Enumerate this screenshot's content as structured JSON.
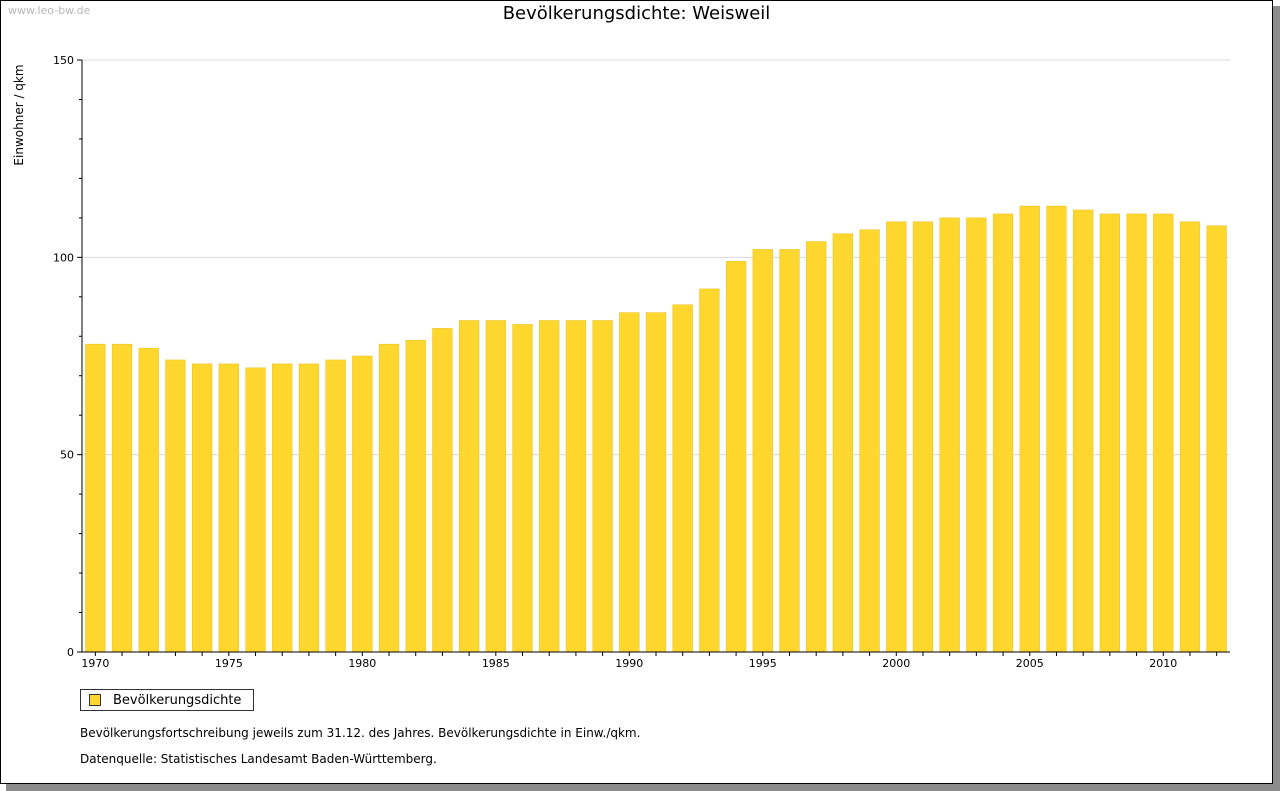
{
  "watermark": "www.leo-bw.de",
  "legend_label": "Bevölkerungsdichte",
  "footnotes": [
    "Bevölkerungsfortschreibung jeweils zum 31.12. des Jahres. Bevölkerungsdichte in Einw./qkm.",
    "Datenquelle: Statistisches Landesamt Baden-Württemberg."
  ],
  "colors": {
    "bar": "#fdd62e",
    "bar_edge": "#e8c020",
    "grid": "#d8d8d8",
    "axis": "#000000"
  },
  "chart_data": {
    "type": "bar",
    "title": "Bevölkerungsdichte: Weisweil",
    "xlabel": "",
    "ylabel": "Einwohner / qkm",
    "ylim": [
      0,
      150
    ],
    "yticks": [
      0,
      50,
      100,
      150
    ],
    "xtick_labels": [
      "1970",
      "1975",
      "1980",
      "1985",
      "1990",
      "1995",
      "2000",
      "2005",
      "2010"
    ],
    "categories": [
      1970,
      1971,
      1972,
      1973,
      1974,
      1975,
      1976,
      1977,
      1978,
      1979,
      1980,
      1981,
      1982,
      1983,
      1984,
      1985,
      1986,
      1987,
      1988,
      1989,
      1990,
      1991,
      1992,
      1993,
      1994,
      1995,
      1996,
      1997,
      1998,
      1999,
      2000,
      2001,
      2002,
      2003,
      2004,
      2005,
      2006,
      2007,
      2008,
      2009,
      2010,
      2011,
      2012
    ],
    "series": [
      {
        "name": "Bevölkerungsdichte",
        "values": [
          78,
          78,
          77,
          74,
          73,
          73,
          72,
          73,
          73,
          74,
          75,
          78,
          79,
          82,
          84,
          84,
          83,
          84,
          84,
          84,
          86,
          86,
          88,
          92,
          99,
          102,
          102,
          104,
          106,
          107,
          109,
          109,
          110,
          110,
          111,
          113,
          113,
          112,
          111,
          111,
          111,
          109,
          108
        ]
      }
    ],
    "grid": true,
    "legend": "bottom-left"
  }
}
